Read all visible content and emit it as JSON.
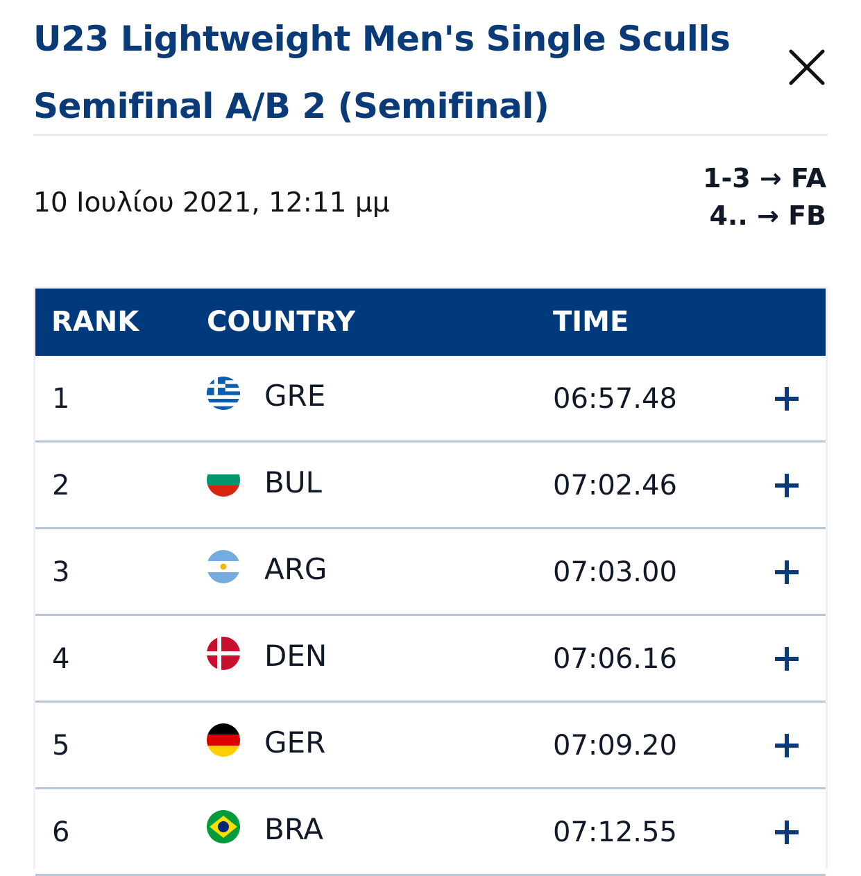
{
  "header": {
    "title_line1": "U23 Lightweight Men's Single Sculls",
    "title_line2": "Semifinal A/B 2 (Semifinal)",
    "close_icon": "close-icon"
  },
  "race": {
    "datetime": "10 Ιουλίου 2021, 12:11 μμ",
    "progression": [
      "1-3 → FA",
      "4.. → FB"
    ]
  },
  "table": {
    "columns": [
      "RANK",
      "COUNTRY",
      "TIME"
    ],
    "rows": [
      {
        "rank": "1",
        "country": "GRE",
        "time": "06:57.48",
        "flag": "greece-flag-icon"
      },
      {
        "rank": "2",
        "country": "BUL",
        "time": "07:02.46",
        "flag": "bulgaria-flag-icon"
      },
      {
        "rank": "3",
        "country": "ARG",
        "time": "07:03.00",
        "flag": "argentina-flag-icon"
      },
      {
        "rank": "4",
        "country": "DEN",
        "time": "07:06.16",
        "flag": "denmark-flag-icon"
      },
      {
        "rank": "5",
        "country": "GER",
        "time": "07:09.20",
        "flag": "germany-flag-icon"
      },
      {
        "rank": "6",
        "country": "BRA",
        "time": "07:12.55",
        "flag": "brazil-flag-icon"
      }
    ]
  },
  "colors": {
    "title": "#0b3a78",
    "header_bg": "#003a7d",
    "row_border": "#b8c7d8",
    "expand_icon": "#0b3a78"
  }
}
